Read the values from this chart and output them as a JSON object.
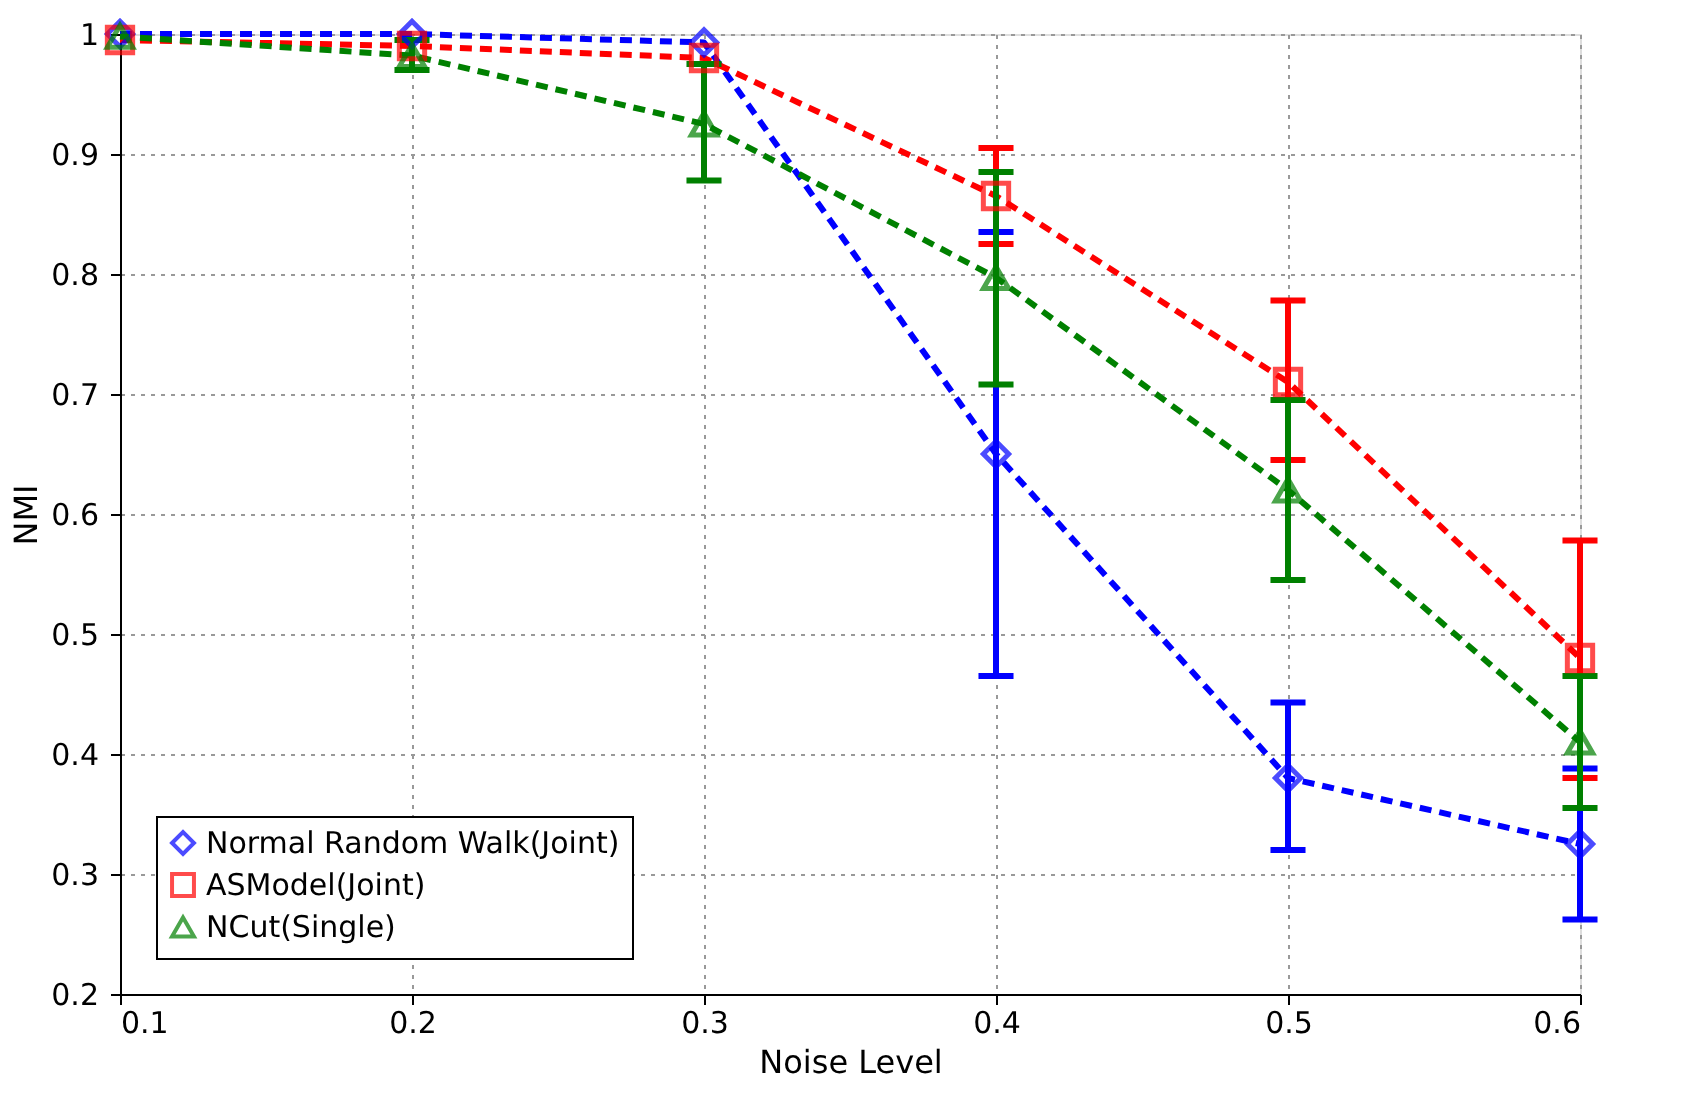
{
  "chart_data": {
    "type": "line",
    "xlabel": "Noise Level",
    "ylabel": "NMI",
    "x": [
      0.1,
      0.2,
      0.3,
      0.4,
      0.5,
      0.6
    ],
    "xlim": [
      0.1,
      0.6
    ],
    "xticks": [
      0.1,
      0.2,
      0.3,
      0.4,
      0.5,
      0.6
    ],
    "ylim": [
      0.2,
      1.0
    ],
    "yticks": [
      0.2,
      0.3,
      0.4,
      0.5,
      0.6,
      0.7,
      0.8,
      0.9,
      1
    ],
    "grid": true,
    "legend": "bottom left",
    "line_style": "dashed",
    "series": [
      {
        "name": "Normal Random Walk(Joint)",
        "color": "#0000ff",
        "marker": "diamond",
        "values": [
          1.0,
          1.0,
          0.993,
          0.65,
          0.38,
          0.325
        ],
        "errors": [
          null,
          null,
          null,
          [
            0.465,
            0.835
          ],
          [
            0.32,
            0.443
          ],
          [
            0.262,
            0.388
          ]
        ]
      },
      {
        "name": "ASModel(Joint)",
        "color": "#ff0000",
        "marker": "square",
        "values": [
          0.995,
          0.99,
          0.98,
          0.865,
          0.71,
          0.48
        ],
        "errors": [
          null,
          null,
          null,
          [
            0.825,
            0.905
          ],
          [
            0.645,
            0.778
          ],
          [
            0.38,
            0.578
          ]
        ]
      },
      {
        "name": "NCut(Single)",
        "color": "#008000",
        "marker": "triangle",
        "values": [
          0.998,
          0.982,
          0.925,
          0.797,
          0.62,
          0.41
        ],
        "errors": [
          null,
          [
            0.97,
            0.995
          ],
          [
            0.878,
            0.975
          ],
          [
            0.708,
            0.885
          ],
          [
            0.545,
            0.695
          ],
          [
            0.355,
            0.465
          ]
        ]
      }
    ]
  }
}
